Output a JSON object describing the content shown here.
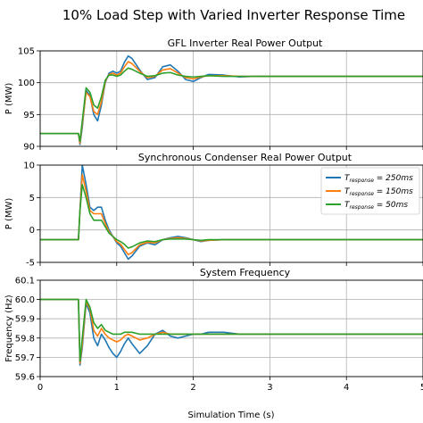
{
  "figure_title": "10% Load Step with Varied Inverter Response Time",
  "x_axis_label": "Simulation Time (s)",
  "legend_entries": [
    "T_response = 250ms",
    "T_response = 150ms",
    "T_response = 50ms"
  ],
  "legend_labels": [
    {
      "base": "T",
      "sub": "response",
      "value": " = 250ms"
    },
    {
      "base": "T",
      "sub": "response",
      "value": " = 150ms"
    },
    {
      "base": "T",
      "sub": "response",
      "value": " = 50ms"
    }
  ],
  "colors": {
    "s250": "#1f77b4",
    "s150": "#ff7f0e",
    "s50": "#2ca02c"
  },
  "chart_data": [
    {
      "type": "line",
      "title": "GFL Inverter Real Power Output",
      "xlabel": "",
      "ylabel": "P (MW)",
      "xlim": [
        0,
        5
      ],
      "ylim": [
        90,
        105
      ],
      "x_ticks": [
        0,
        1,
        2,
        3,
        4,
        5
      ],
      "y_ticks": [
        90,
        95,
        100,
        105
      ],
      "grid": true,
      "series": [
        {
          "name": "T_response = 250ms",
          "x": [
            0,
            0.5,
            0.52,
            0.55,
            0.6,
            0.65,
            0.7,
            0.75,
            0.8,
            0.85,
            0.9,
            0.95,
            1.0,
            1.05,
            1.1,
            1.15,
            1.2,
            1.3,
            1.4,
            1.5,
            1.6,
            1.7,
            1.8,
            1.9,
            2.0,
            2.1,
            2.2,
            2.4,
            2.6,
            2.8,
            3.0,
            3.5,
            4.0,
            4.5,
            5.0
          ],
          "y": [
            92,
            92,
            90.3,
            93,
            98.8,
            98,
            95,
            94,
            96.5,
            100,
            101.5,
            101.8,
            101.5,
            101.8,
            103.2,
            104.2,
            103.8,
            102,
            100.5,
            100.8,
            102.5,
            102.8,
            101.8,
            100.5,
            100.2,
            100.8,
            101.3,
            101.2,
            100.9,
            101,
            101,
            101,
            101,
            101,
            101
          ]
        },
        {
          "name": "T_response = 150ms",
          "x": [
            0,
            0.5,
            0.52,
            0.55,
            0.6,
            0.65,
            0.7,
            0.75,
            0.8,
            0.85,
            0.9,
            0.95,
            1.0,
            1.05,
            1.1,
            1.15,
            1.2,
            1.3,
            1.4,
            1.5,
            1.6,
            1.7,
            1.8,
            1.9,
            2.0,
            2.1,
            2.2,
            2.4,
            2.6,
            2.8,
            3.0,
            3.5,
            4.0,
            4.5,
            5.0
          ],
          "y": [
            92,
            92,
            90.5,
            93.5,
            98.5,
            97.8,
            95.5,
            95,
            97,
            100.2,
            101.3,
            101.5,
            101.2,
            101.5,
            102.5,
            103.3,
            103,
            101.8,
            100.8,
            101,
            102,
            102.2,
            101.5,
            100.8,
            100.6,
            100.9,
            101.1,
            101.1,
            101,
            101,
            101,
            101,
            101,
            101,
            101
          ]
        },
        {
          "name": "T_response = 50ms",
          "x": [
            0,
            0.5,
            0.52,
            0.55,
            0.6,
            0.65,
            0.7,
            0.75,
            0.8,
            0.85,
            0.9,
            0.95,
            1.0,
            1.05,
            1.1,
            1.15,
            1.2,
            1.3,
            1.4,
            1.5,
            1.6,
            1.7,
            1.8,
            1.9,
            2.0,
            2.1,
            2.2,
            2.4,
            2.6,
            2.8,
            3.0,
            3.5,
            4.0,
            4.5,
            5.0
          ],
          "y": [
            92,
            92,
            90.8,
            94,
            99.2,
            98.5,
            96.5,
            96,
            97.8,
            100.4,
            101.2,
            101.2,
            101,
            101.2,
            101.8,
            102.3,
            102.1,
            101.5,
            101,
            101.1,
            101.5,
            101.6,
            101.2,
            101,
            100.9,
            101,
            101.1,
            101,
            101,
            101,
            101,
            101,
            101,
            101,
            101
          ]
        }
      ]
    },
    {
      "type": "line",
      "title": "Synchronous Condenser Real Power Output",
      "xlabel": "",
      "ylabel": "P (MW)",
      "xlim": [
        0,
        5
      ],
      "ylim": [
        -5,
        10
      ],
      "x_ticks": [
        0,
        1,
        2,
        3,
        4,
        5
      ],
      "y_ticks": [
        -5,
        0,
        5,
        10
      ],
      "grid": true,
      "legend": "top-right",
      "series": [
        {
          "name": "T_response = 250ms",
          "x": [
            0,
            0.5,
            0.52,
            0.55,
            0.6,
            0.65,
            0.7,
            0.75,
            0.8,
            0.85,
            0.9,
            0.95,
            1.0,
            1.05,
            1.1,
            1.15,
            1.2,
            1.3,
            1.4,
            1.5,
            1.6,
            1.7,
            1.8,
            1.9,
            2.0,
            2.1,
            2.2,
            2.4,
            2.6,
            2.8,
            3.0,
            3.5,
            4.0,
            4.5,
            5.0
          ],
          "y": [
            -1.5,
            -1.5,
            3,
            10,
            7,
            3.5,
            3,
            3.5,
            3.5,
            1.5,
            0,
            -1,
            -2,
            -2.5,
            -3.5,
            -4.5,
            -4,
            -2.5,
            -2,
            -2.3,
            -1.5,
            -1.2,
            -1,
            -1.2,
            -1.5,
            -1.8,
            -1.6,
            -1.5,
            -1.5,
            -1.5,
            -1.5,
            -1.5,
            -1.5,
            -1.5,
            -1.5
          ]
        },
        {
          "name": "T_response = 150ms",
          "x": [
            0,
            0.5,
            0.52,
            0.55,
            0.6,
            0.65,
            0.7,
            0.75,
            0.8,
            0.85,
            0.9,
            0.95,
            1.0,
            1.05,
            1.1,
            1.15,
            1.2,
            1.3,
            1.4,
            1.5,
            1.6,
            1.7,
            1.8,
            1.9,
            2.0,
            2.1,
            2.2,
            2.4,
            2.6,
            2.8,
            3.0,
            3.5,
            4.0,
            4.5,
            5.0
          ],
          "y": [
            -1.5,
            -1.5,
            3,
            8.5,
            6,
            3,
            2.5,
            2.5,
            2.5,
            1,
            -0.3,
            -1,
            -1.8,
            -2.2,
            -3,
            -3.8,
            -3.5,
            -2.3,
            -1.9,
            -2,
            -1.5,
            -1.3,
            -1.2,
            -1.3,
            -1.5,
            -1.7,
            -1.6,
            -1.5,
            -1.5,
            -1.5,
            -1.5,
            -1.5,
            -1.5,
            -1.5,
            -1.5
          ]
        },
        {
          "name": "T_response = 50ms",
          "x": [
            0,
            0.5,
            0.52,
            0.55,
            0.6,
            0.65,
            0.7,
            0.75,
            0.8,
            0.85,
            0.9,
            0.95,
            1.0,
            1.05,
            1.1,
            1.15,
            1.2,
            1.3,
            1.4,
            1.5,
            1.6,
            1.7,
            1.8,
            1.9,
            2.0,
            2.1,
            2.2,
            2.4,
            2.6,
            2.8,
            3.0,
            3.5,
            4.0,
            4.5,
            5.0
          ],
          "y": [
            -1.5,
            -1.5,
            3,
            7,
            5,
            2.5,
            1.5,
            1.5,
            1.5,
            0.5,
            -0.5,
            -1,
            -1.5,
            -1.8,
            -2.2,
            -2.8,
            -2.6,
            -2,
            -1.7,
            -1.8,
            -1.5,
            -1.4,
            -1.4,
            -1.4,
            -1.5,
            -1.6,
            -1.5,
            -1.5,
            -1.5,
            -1.5,
            -1.5,
            -1.5,
            -1.5,
            -1.5,
            -1.5
          ]
        }
      ]
    },
    {
      "type": "line",
      "title": "System Frequency",
      "xlabel": "Simulation Time (s)",
      "ylabel": "Frequency (Hz)",
      "xlim": [
        0,
        5
      ],
      "ylim": [
        59.6,
        60.1
      ],
      "x_ticks": [
        0,
        1,
        2,
        3,
        4,
        5
      ],
      "y_ticks": [
        59.6,
        59.7,
        59.8,
        59.9,
        60.0,
        60.1
      ],
      "grid": true,
      "series": [
        {
          "name": "T_response = 250ms",
          "x": [
            0,
            0.5,
            0.52,
            0.55,
            0.6,
            0.65,
            0.7,
            0.75,
            0.8,
            0.85,
            0.9,
            0.95,
            1.0,
            1.05,
            1.1,
            1.15,
            1.2,
            1.3,
            1.4,
            1.5,
            1.6,
            1.7,
            1.8,
            1.9,
            2.0,
            2.1,
            2.2,
            2.4,
            2.6,
            2.8,
            3.0,
            3.5,
            4.0,
            4.5,
            5.0
          ],
          "y": [
            60.0,
            60.0,
            59.66,
            59.75,
            59.98,
            59.93,
            59.8,
            59.76,
            59.82,
            59.79,
            59.75,
            59.72,
            59.7,
            59.73,
            59.77,
            59.8,
            59.77,
            59.72,
            59.76,
            59.82,
            59.84,
            59.81,
            59.8,
            59.81,
            59.82,
            59.82,
            59.83,
            59.83,
            59.82,
            59.82,
            59.82,
            59.82,
            59.82,
            59.82,
            59.82
          ]
        },
        {
          "name": "T_response = 150ms",
          "x": [
            0,
            0.5,
            0.52,
            0.55,
            0.6,
            0.65,
            0.7,
            0.75,
            0.8,
            0.85,
            0.9,
            0.95,
            1.0,
            1.05,
            1.1,
            1.15,
            1.2,
            1.3,
            1.4,
            1.5,
            1.6,
            1.7,
            1.8,
            1.9,
            2.0,
            2.1,
            2.2,
            2.4,
            2.6,
            2.8,
            3.0,
            3.5,
            4.0,
            4.5,
            5.0
          ],
          "y": [
            60.0,
            60.0,
            59.67,
            59.77,
            59.99,
            59.95,
            59.84,
            59.81,
            59.85,
            59.82,
            59.8,
            59.79,
            59.78,
            59.79,
            59.81,
            59.82,
            59.81,
            59.79,
            59.8,
            59.82,
            59.83,
            59.82,
            59.82,
            59.82,
            59.82,
            59.82,
            59.82,
            59.82,
            59.82,
            59.82,
            59.82,
            59.82,
            59.82,
            59.82,
            59.82
          ]
        },
        {
          "name": "T_response = 50ms",
          "x": [
            0,
            0.5,
            0.52,
            0.55,
            0.6,
            0.65,
            0.7,
            0.75,
            0.8,
            0.85,
            0.9,
            0.95,
            1.0,
            1.05,
            1.1,
            1.15,
            1.2,
            1.3,
            1.4,
            1.5,
            1.6,
            1.7,
            1.8,
            1.9,
            2.0,
            2.1,
            2.2,
            2.4,
            2.6,
            2.8,
            3.0,
            3.5,
            4.0,
            4.5,
            5.0
          ],
          "y": [
            60.0,
            60.0,
            59.68,
            59.8,
            60.0,
            59.96,
            59.88,
            59.85,
            59.87,
            59.84,
            59.83,
            59.82,
            59.82,
            59.82,
            59.83,
            59.83,
            59.83,
            59.82,
            59.82,
            59.82,
            59.82,
            59.82,
            59.82,
            59.82,
            59.82,
            59.82,
            59.82,
            59.82,
            59.82,
            59.82,
            59.82,
            59.82,
            59.82,
            59.82,
            59.82
          ]
        }
      ]
    }
  ]
}
